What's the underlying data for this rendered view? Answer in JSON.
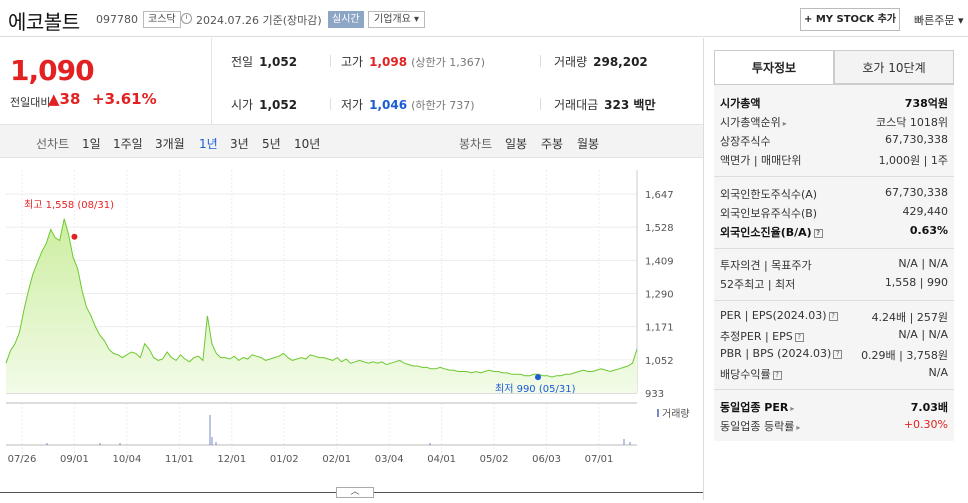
{
  "header": {
    "stock_name": "에코볼트",
    "stock_code": "097780",
    "market": "코스닥",
    "date_text": "2024.07.26  기준(장마감)",
    "realtime": "실시간",
    "company_info": "기업개요 ▾",
    "my_stock": "+ MY STOCK 추가",
    "quick_order": "빠른주문 ▾"
  },
  "price": {
    "current": "1,090",
    "change_label": "전일대비",
    "change": "▲38",
    "rate": "+3.61%"
  },
  "stats": {
    "prev_label": "전일",
    "prev": "1,052",
    "open_label": "시가",
    "open": "1,052",
    "high_label": "고가",
    "high": "1,098",
    "upper_limit": "(상한가 1,367)",
    "low_label": "저가",
    "low": "1,046",
    "lower_limit": "(하한가 737)",
    "volume_label": "거래량",
    "volume": "298,202",
    "amount_label": "거래대금",
    "amount": "323 백만"
  },
  "period_bar": {
    "line_chart": "선차트",
    "periods": [
      "1일",
      "1주일",
      "3개월",
      "1년",
      "3년",
      "5년",
      "10년"
    ],
    "selected": "1년",
    "candle_chart": "봉차트",
    "candles": [
      "일봉",
      "주봉",
      "월봉"
    ]
  },
  "chart_data": {
    "type": "area",
    "y_ticks": [
      "1,647",
      "1,528",
      "1,409",
      "1,290",
      "1,171",
      "1,052",
      "933"
    ],
    "ylim": [
      933,
      1647
    ],
    "x_labels": [
      "07/26",
      "09/01",
      "10/04",
      "11/01",
      "12/01",
      "01/02",
      "02/01",
      "03/04",
      "04/01",
      "05/02",
      "06/03",
      "07/01"
    ],
    "values": [
      1040,
      1085,
      1110,
      1150,
      1230,
      1300,
      1360,
      1400,
      1440,
      1470,
      1520,
      1490,
      1480,
      1558,
      1500,
      1420,
      1380,
      1300,
      1240,
      1210,
      1170,
      1140,
      1120,
      1090,
      1075,
      1070,
      1060,
      1070,
      1080,
      1075,
      1060,
      1110,
      1090,
      1060,
      1050,
      1055,
      1080,
      1060,
      1050,
      1070,
      1055,
      1045,
      1060,
      1065,
      1050,
      1210,
      1110,
      1075,
      1060,
      1060,
      1055,
      1065,
      1050,
      1060,
      1055,
      1070,
      1065,
      1060,
      1050,
      1055,
      1060,
      1065,
      1075,
      1060,
      1050,
      1055,
      1060,
      1055,
      1070,
      1065,
      1060,
      1060,
      1055,
      1050,
      1060,
      1045,
      1055,
      1040,
      1045,
      1050,
      1045,
      1040,
      1045,
      1040,
      1045,
      1035,
      1040,
      1045,
      1050,
      1040,
      1035,
      1030,
      1030,
      1025,
      1025,
      1020,
      1020,
      1025,
      1020,
      1015,
      1015,
      1010,
      1010,
      1010,
      1005,
      1010,
      1005,
      1010,
      1015,
      1010,
      1010,
      1005,
      1005,
      1000,
      1000,
      1000,
      995,
      995,
      1000,
      1000,
      995,
      995,
      990,
      995,
      995,
      1000,
      1000,
      1005,
      1010,
      1015,
      1010,
      1010,
      1015,
      1020,
      1015,
      1010,
      1015,
      1020,
      1025,
      1030,
      1040,
      1090
    ],
    "max_label": "최고 1,558 (08/31)",
    "min_label": "최저 990 (05/31)",
    "volume_label": "거래량"
  },
  "tabs": {
    "tab1": "투자정보",
    "tab2": "호가 10단계"
  },
  "info": {
    "market_cap_label": "시가총액",
    "market_cap": "738억원",
    "rank_label": "시가총액순위",
    "rank": "코스닥 1018위",
    "shares_label": "상장주식수",
    "shares": "67,730,338",
    "par_label": "액면가 | 매매단위",
    "par": "1,000원 | 1주",
    "foreign_limit_label": "외국인한도주식수(A)",
    "foreign_limit": "67,730,338",
    "foreign_hold_label": "외국인보유주식수(B)",
    "foreign_hold": "429,440",
    "foreign_rate_label": "외국인소진율(B/A)",
    "foreign_rate": "0.63%",
    "opinion_label": "투자의견 | 목표주가",
    "opinion": "N/A | N/A",
    "week52_label": "52주최고 | 최저",
    "week52": "1,558 | 990",
    "per_label": "PER | EPS(2024.03)",
    "per": "4.24배 | 257원",
    "est_per_label": "추정PER | EPS",
    "est_per": "N/A | N/A",
    "pbr_label": "PBR | BPS (2024.03)",
    "pbr": "0.29배 | 3,758원",
    "dividend_label": "배당수익률",
    "dividend": "N/A",
    "industry_per_label": "동일업종 PER",
    "industry_per": "7.03배",
    "industry_rate_label": "동일업종 등락률",
    "industry_rate": "+0.30%"
  }
}
